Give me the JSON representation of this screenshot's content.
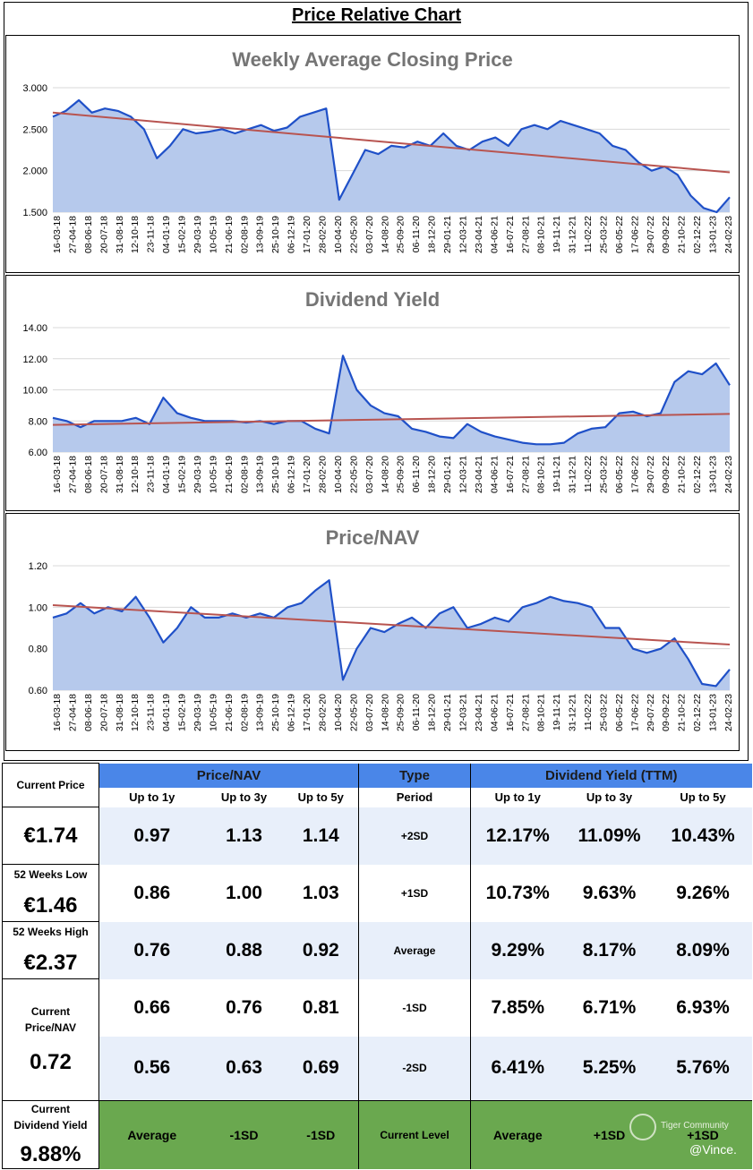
{
  "title": "Price Relative Chart",
  "colors": {
    "line": "#1f50c8",
    "area": "#b6c9ec",
    "trend": "#b85450",
    "grid": "#d9d9d9",
    "header_blue": "#4a86e8",
    "green": "#6aa84f",
    "shade": "#e8effa"
  },
  "chart_data": [
    {
      "type": "area",
      "title": "Weekly Average Closing Price",
      "ylim": [
        1.5,
        3.0
      ],
      "yticks": [
        "1.500",
        "2.000",
        "2.500",
        "3.000"
      ],
      "ytick_values": [
        1.5,
        2.0,
        2.5,
        3.0
      ],
      "x_tick_labels": [
        "16-03-18",
        "27-04-18",
        "08-06-18",
        "20-07-18",
        "31-08-18",
        "12-10-18",
        "23-11-18",
        "04-01-19",
        "15-02-19",
        "29-03-19",
        "10-05-19",
        "21-06-19",
        "02-08-19",
        "13-09-19",
        "25-10-19",
        "06-12-19",
        "17-01-20",
        "28-02-20",
        "10-04-20",
        "22-05-20",
        "03-07-20",
        "14-08-20",
        "25-09-20",
        "06-11-20",
        "18-12-20",
        "29-01-21",
        "12-03-21",
        "23-04-21",
        "04-06-21",
        "16-07-21",
        "27-08-21",
        "08-10-21",
        "19-11-21",
        "31-12-21",
        "11-02-22",
        "25-03-22",
        "06-05-22",
        "17-06-22",
        "29-07-22",
        "09-09-22",
        "21-10-22",
        "02-12-22",
        "13-01-23",
        "24-02-23"
      ],
      "series": [
        {
          "values": [
            2.65,
            2.72,
            2.85,
            2.7,
            2.75,
            2.72,
            2.65,
            2.5,
            2.15,
            2.3,
            2.5,
            2.45,
            2.47,
            2.5,
            2.45,
            2.5,
            2.55,
            2.48,
            2.52,
            2.65,
            2.7,
            2.75,
            1.65,
            1.95,
            2.25,
            2.2,
            2.3,
            2.28,
            2.35,
            2.3,
            2.45,
            2.3,
            2.25,
            2.35,
            2.4,
            2.3,
            2.5,
            2.55,
            2.5,
            2.6,
            2.55,
            2.5,
            2.45,
            2.3,
            2.25,
            2.1,
            2.0,
            2.05,
            1.95,
            1.7,
            1.55,
            1.5,
            1.68
          ]
        }
      ],
      "trend": [
        2.7,
        1.98
      ]
    },
    {
      "type": "area",
      "title": "Dividend Yield",
      "ylim": [
        6.0,
        14.0
      ],
      "yticks": [
        "6.00",
        "8.00",
        "10.00",
        "12.00",
        "14.00"
      ],
      "ytick_values": [
        6,
        8,
        10,
        12,
        14
      ],
      "x_tick_labels": [
        "16-03-18",
        "27-04-18",
        "08-06-18",
        "20-07-18",
        "31-08-18",
        "12-10-18",
        "23-11-18",
        "04-01-19",
        "15-02-19",
        "29-03-19",
        "10-05-19",
        "21-06-19",
        "02-08-19",
        "13-09-19",
        "25-10-19",
        "06-12-19",
        "17-01-20",
        "28-02-20",
        "10-04-20",
        "22-05-20",
        "03-07-20",
        "14-08-20",
        "25-09-20",
        "06-11-20",
        "18-12-20",
        "29-01-21",
        "12-03-21",
        "23-04-21",
        "04-06-21",
        "16-07-21",
        "27-08-21",
        "08-10-21",
        "19-11-21",
        "31-12-21",
        "11-02-22",
        "25-03-22",
        "06-05-22",
        "17-06-22",
        "29-07-22",
        "09-09-22",
        "21-10-22",
        "02-12-22",
        "13-01-23",
        "24-02-23"
      ],
      "series": [
        {
          "values": [
            8.2,
            8.0,
            7.6,
            8.0,
            8.0,
            8.0,
            8.2,
            7.8,
            9.5,
            8.5,
            8.2,
            8.0,
            8.0,
            8.0,
            7.9,
            8.0,
            7.8,
            8.0,
            8.0,
            7.5,
            7.2,
            12.2,
            10.0,
            9.0,
            8.5,
            8.3,
            7.5,
            7.3,
            7.0,
            6.9,
            7.8,
            7.3,
            7.0,
            6.8,
            6.6,
            6.5,
            6.5,
            6.6,
            7.2,
            7.5,
            7.6,
            8.5,
            8.6,
            8.3,
            8.5,
            10.5,
            11.2,
            11.0,
            11.7,
            10.3
          ]
        }
      ],
      "trend": [
        7.75,
        8.45
      ]
    },
    {
      "type": "area",
      "title": "Price/NAV",
      "ylim": [
        0.6,
        1.2
      ],
      "yticks": [
        "0.60",
        "0.80",
        "1.00",
        "1.20"
      ],
      "ytick_values": [
        0.6,
        0.8,
        1.0,
        1.2
      ],
      "x_tick_labels": [
        "16-03-18",
        "27-04-18",
        "08-06-18",
        "20-07-18",
        "31-08-18",
        "12-10-18",
        "23-11-18",
        "04-01-19",
        "15-02-19",
        "29-03-19",
        "10-05-19",
        "21-06-19",
        "02-08-19",
        "13-09-19",
        "25-10-19",
        "06-12-19",
        "17-01-20",
        "28-02-20",
        "10-04-20",
        "22-05-20",
        "03-07-20",
        "14-08-20",
        "25-09-20",
        "06-11-20",
        "18-12-20",
        "29-01-21",
        "12-03-21",
        "23-04-21",
        "04-06-21",
        "16-07-21",
        "27-08-21",
        "08-10-21",
        "19-11-21",
        "31-12-21",
        "11-02-22",
        "25-03-22",
        "06-05-22",
        "17-06-22",
        "29-07-22",
        "09-09-22",
        "21-10-22",
        "02-12-22",
        "13-01-23",
        "24-02-23"
      ],
      "series": [
        {
          "values": [
            0.95,
            0.97,
            1.02,
            0.97,
            1.0,
            0.98,
            1.05,
            0.95,
            0.83,
            0.9,
            1.0,
            0.95,
            0.95,
            0.97,
            0.95,
            0.97,
            0.95,
            1.0,
            1.02,
            1.08,
            1.13,
            0.65,
            0.8,
            0.9,
            0.88,
            0.92,
            0.95,
            0.9,
            0.97,
            1.0,
            0.9,
            0.92,
            0.95,
            0.93,
            1.0,
            1.02,
            1.05,
            1.03,
            1.02,
            1.0,
            0.9,
            0.9,
            0.8,
            0.78,
            0.8,
            0.85,
            0.75,
            0.63,
            0.62,
            0.7
          ]
        }
      ],
      "trend": [
        1.01,
        0.82
      ]
    }
  ],
  "table": {
    "pnav_header": "Price/NAV",
    "type_header": "Type",
    "dy_header": "Dividend Yield (TTM)",
    "sub": {
      "c1": "Up to 1y",
      "c2": "Up to 3y",
      "c3": "Up to 5y",
      "type": "Period",
      "d1": "Up to 1y",
      "d2": "Up to 3y",
      "d3": "Up to 5y"
    },
    "rows": [
      {
        "p1": "0.97",
        "p2": "1.13",
        "p3": "1.14",
        "type": "+2SD",
        "d1": "12.17%",
        "d2": "11.09%",
        "d3": "10.43%"
      },
      {
        "p1": "0.86",
        "p2": "1.00",
        "p3": "1.03",
        "type": "+1SD",
        "d1": "10.73%",
        "d2": "9.63%",
        "d3": "9.26%"
      },
      {
        "p1": "0.76",
        "p2": "0.88",
        "p3": "0.92",
        "type": "Average",
        "d1": "9.29%",
        "d2": "8.17%",
        "d3": "8.09%"
      },
      {
        "p1": "0.66",
        "p2": "0.76",
        "p3": "0.81",
        "type": "-1SD",
        "d1": "7.85%",
        "d2": "6.71%",
        "d3": "6.93%"
      },
      {
        "p1": "0.56",
        "p2": "0.63",
        "p3": "0.69",
        "type": "-2SD",
        "d1": "6.41%",
        "d2": "5.25%",
        "d3": "5.76%"
      }
    ],
    "current": {
      "p1": "Average",
      "p2": "-1SD",
      "p3": "-1SD",
      "type": "Current Level",
      "d1": "Average",
      "d2": "+1SD",
      "d3": "+1SD"
    },
    "left": {
      "current_price_label": "Current Price",
      "current_price": "€1.74",
      "low_label": "52 Weeks Low",
      "low": "€1.46",
      "high_label": "52 Weeks High",
      "high": "€2.37",
      "pnav_label_1": "Current",
      "pnav_label_2": "Price/NAV",
      "pnav": "0.72",
      "dy_label_1": "Current",
      "dy_label_2": "Dividend Yield",
      "dy": "9.88%"
    }
  },
  "watermark": {
    "brand": "Tiger Community",
    "user": "@Vince."
  }
}
